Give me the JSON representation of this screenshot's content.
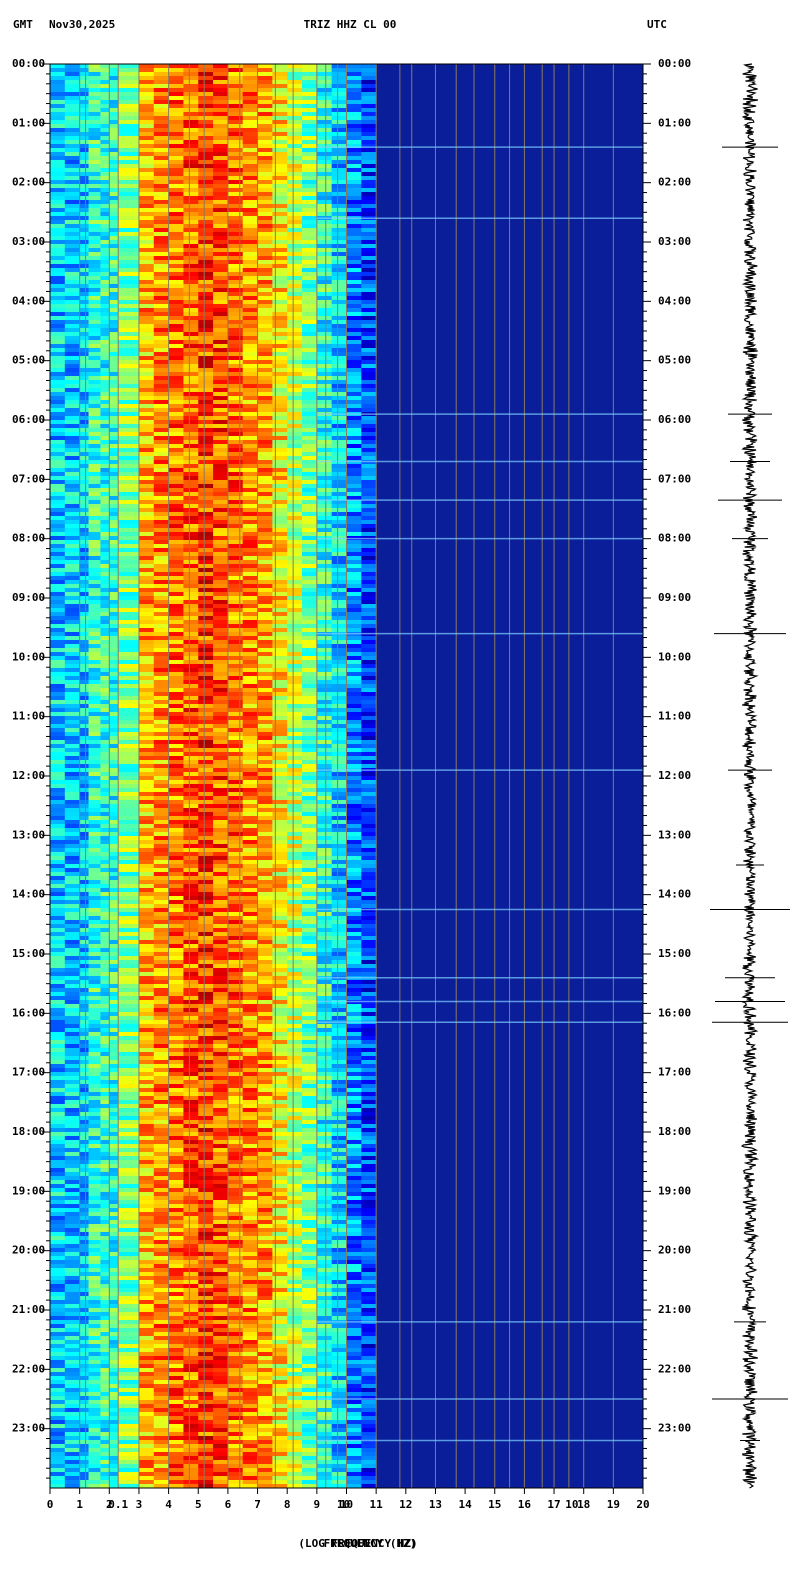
{
  "chart_data": {
    "type": "spectrogram",
    "title": "TRIZ HHZ CL 00",
    "left_zone": "GMT",
    "date": "Nov30,2025",
    "right_zone": "UTC",
    "xlabel": "FREQUENCY (HZ)",
    "xlabel_overlay": "(LOG FREQUENCY HZ)",
    "xlim": [
      0,
      20
    ],
    "xticks": [
      0,
      1,
      2,
      3,
      4,
      5,
      6,
      7,
      8,
      9,
      10,
      11,
      12,
      13,
      14,
      15,
      16,
      17,
      18,
      19,
      20
    ],
    "xtick_overlays": [
      {
        "value": 2.3,
        "label": "0.1"
      },
      {
        "value": 9.9,
        "label": "10"
      },
      {
        "value": 17.6,
        "label": "10"
      }
    ],
    "ylim": [
      0,
      24
    ],
    "yticks": [
      {
        "value": 0,
        "label": "00:00"
      },
      {
        "value": 1,
        "label": "01:00"
      },
      {
        "value": 2,
        "label": "02:00"
      },
      {
        "value": 3,
        "label": "03:00"
      },
      {
        "value": 4,
        "label": "04:00"
      },
      {
        "value": 5,
        "label": "05:00"
      },
      {
        "value": 6,
        "label": "06:00"
      },
      {
        "value": 7,
        "label": "07:00"
      },
      {
        "value": 8,
        "label": "08:00"
      },
      {
        "value": 9,
        "label": "09:00"
      },
      {
        "value": 10,
        "label": "10:00"
      },
      {
        "value": 11,
        "label": "11:00"
      },
      {
        "value": 12,
        "label": "12:00"
      },
      {
        "value": 13,
        "label": "13:00"
      },
      {
        "value": 14,
        "label": "14:00"
      },
      {
        "value": 15,
        "label": "15:00"
      },
      {
        "value": 16,
        "label": "16:00"
      },
      {
        "value": 17,
        "label": "17:00"
      },
      {
        "value": 18,
        "label": "18:00"
      },
      {
        "value": 19,
        "label": "19:00"
      },
      {
        "value": 20,
        "label": "20:00"
      },
      {
        "value": 21,
        "label": "21:00"
      },
      {
        "value": 22,
        "label": "22:00"
      },
      {
        "value": 23,
        "label": "23:00"
      }
    ]
  }
}
